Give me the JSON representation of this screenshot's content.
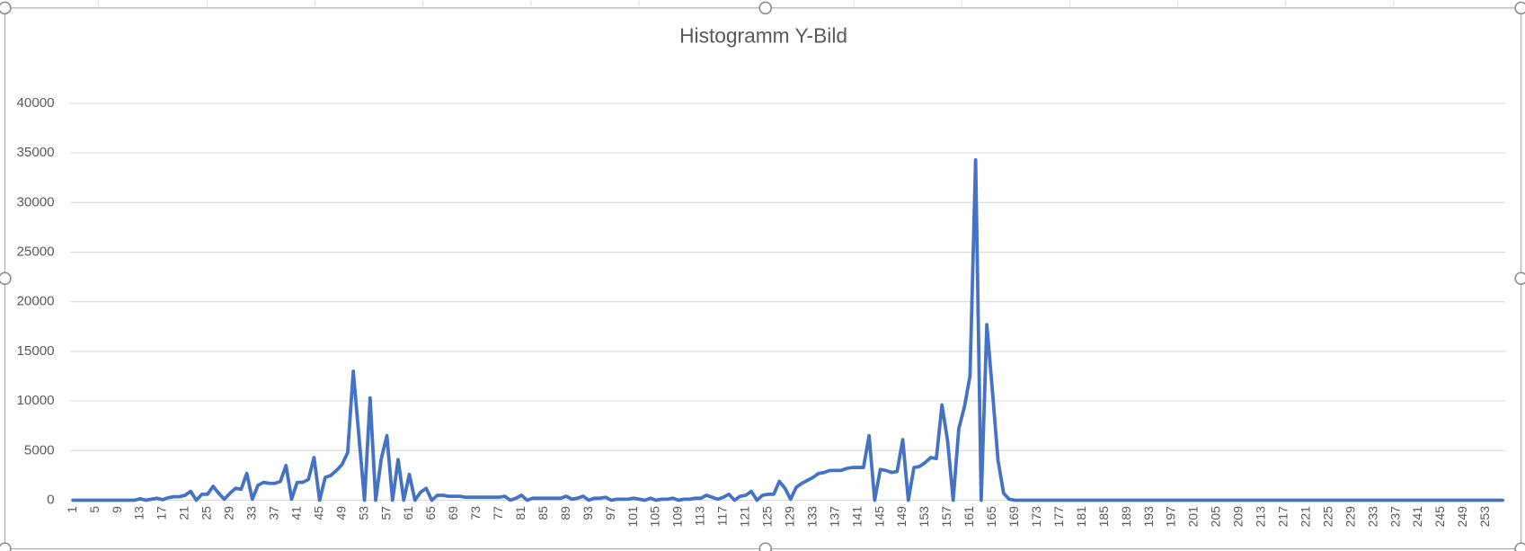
{
  "chart_data": {
    "type": "line",
    "title": "Histogramm Y-Bild",
    "categories": [
      1,
      null,
      null,
      null,
      5,
      null,
      null,
      null,
      9,
      null,
      null,
      null,
      13,
      null,
      null,
      null,
      17,
      null,
      null,
      null,
      21,
      null,
      null,
      null,
      25,
      null,
      null,
      null,
      29,
      null,
      null,
      null,
      33,
      null,
      null,
      null,
      37,
      null,
      null,
      null,
      41,
      null,
      null,
      null,
      45,
      null,
      null,
      null,
      49,
      null,
      null,
      null,
      53,
      null,
      null,
      null,
      57,
      null,
      null,
      null,
      61,
      null,
      null,
      null,
      65,
      null,
      null,
      null,
      69,
      null,
      null,
      null,
      73,
      null,
      null,
      null,
      77,
      null,
      null,
      null,
      81,
      null,
      null,
      null,
      85,
      null,
      null,
      null,
      89,
      null,
      null,
      null,
      93,
      null,
      null,
      null,
      97,
      null,
      null,
      null,
      101,
      null,
      null,
      null,
      105,
      null,
      null,
      null,
      109,
      null,
      null,
      null,
      113,
      null,
      null,
      null,
      117,
      null,
      null,
      null,
      121,
      null,
      null,
      null,
      125,
      null,
      null,
      null,
      129,
      null,
      null,
      null,
      133,
      null,
      null,
      null,
      137,
      null,
      null,
      null,
      141,
      null,
      null,
      null,
      145,
      null,
      null,
      null,
      149,
      null,
      null,
      null,
      153,
      null,
      null,
      null,
      157,
      null,
      null,
      null,
      161,
      null,
      null,
      null,
      165,
      null,
      null,
      null,
      169,
      null,
      null,
      null,
      173,
      null,
      null,
      null,
      177,
      null,
      null,
      null,
      181,
      null,
      null,
      null,
      185,
      null,
      null,
      null,
      189,
      null,
      null,
      null,
      193,
      null,
      null,
      null,
      197,
      null,
      null,
      null,
      201,
      null,
      null,
      null,
      205,
      null,
      null,
      null,
      209,
      null,
      null,
      null,
      213,
      null,
      null,
      null,
      217,
      null,
      null,
      null,
      221,
      null,
      null,
      null,
      225,
      null,
      null,
      null,
      229,
      null,
      null,
      null,
      233,
      null,
      null,
      null,
      237,
      null,
      null,
      null,
      241,
      null,
      null,
      null,
      245,
      null,
      null,
      null,
      249,
      null,
      null,
      null,
      253,
      null,
      null,
      null
    ],
    "values": [
      0,
      0,
      0,
      0,
      0,
      0,
      0,
      0,
      0,
      0,
      0,
      0,
      150,
      0,
      100,
      200,
      50,
      250,
      350,
      350,
      500,
      900,
      0,
      600,
      600,
      1400,
      700,
      100,
      700,
      1200,
      1100,
      2700,
      100,
      1500,
      1800,
      1700,
      1700,
      1900,
      3500,
      100,
      1800,
      1800,
      2100,
      4300,
      0,
      2300,
      2500,
      3000,
      3600,
      4800,
      13000,
      6500,
      0,
      10300,
      0,
      4200,
      6500,
      0,
      4100,
      0,
      2600,
      0,
      800,
      1200,
      0,
      500,
      500,
      400,
      400,
      400,
      300,
      300,
      300,
      300,
      300,
      300,
      300,
      400,
      0,
      200,
      500,
      0,
      200,
      200,
      200,
      200,
      200,
      200,
      400,
      100,
      200,
      400,
      0,
      200,
      200,
      300,
      0,
      100,
      100,
      100,
      200,
      100,
      0,
      200,
      0,
      100,
      100,
      200,
      0,
      100,
      100,
      200,
      200,
      500,
      300,
      100,
      300,
      600,
      0,
      400,
      500,
      900,
      0,
      500,
      600,
      600,
      1900,
      1200,
      100,
      1300,
      1700,
      2000,
      2300,
      2700,
      2800,
      3000,
      3000,
      3000,
      3200,
      3300,
      3300,
      3300,
      6500,
      0,
      3100,
      3000,
      2800,
      2900,
      6100,
      0,
      3300,
      3400,
      3800,
      4300,
      4200,
      9600,
      6000,
      0,
      7200,
      9400,
      12500,
      34300,
      0,
      17700,
      11000,
      4000,
      700,
      100,
      0,
      0,
      0,
      0,
      0,
      0,
      0,
      0,
      0,
      0,
      0,
      0,
      0,
      0,
      0,
      0,
      0,
      0,
      0,
      0,
      0,
      0,
      0,
      0,
      0,
      0,
      0,
      0,
      0,
      0,
      0,
      0,
      0,
      0,
      0,
      0,
      0,
      0,
      0,
      0,
      0,
      0,
      0,
      0,
      0,
      0,
      0,
      0,
      0,
      0,
      0,
      0,
      0,
      0,
      0,
      0,
      0,
      0,
      0,
      0,
      0,
      0,
      0,
      0,
      0,
      0,
      0,
      0,
      0,
      0,
      0,
      0,
      0,
      0,
      0,
      0,
      0,
      0,
      0,
      0,
      0,
      0,
      0,
      0,
      0,
      0,
      0,
      0
    ],
    "color": "#4472c4",
    "ylim": [
      0,
      40000
    ],
    "yticks": [
      0,
      5000,
      10000,
      15000,
      20000,
      25000,
      30000,
      35000,
      40000
    ],
    "grid": true
  }
}
